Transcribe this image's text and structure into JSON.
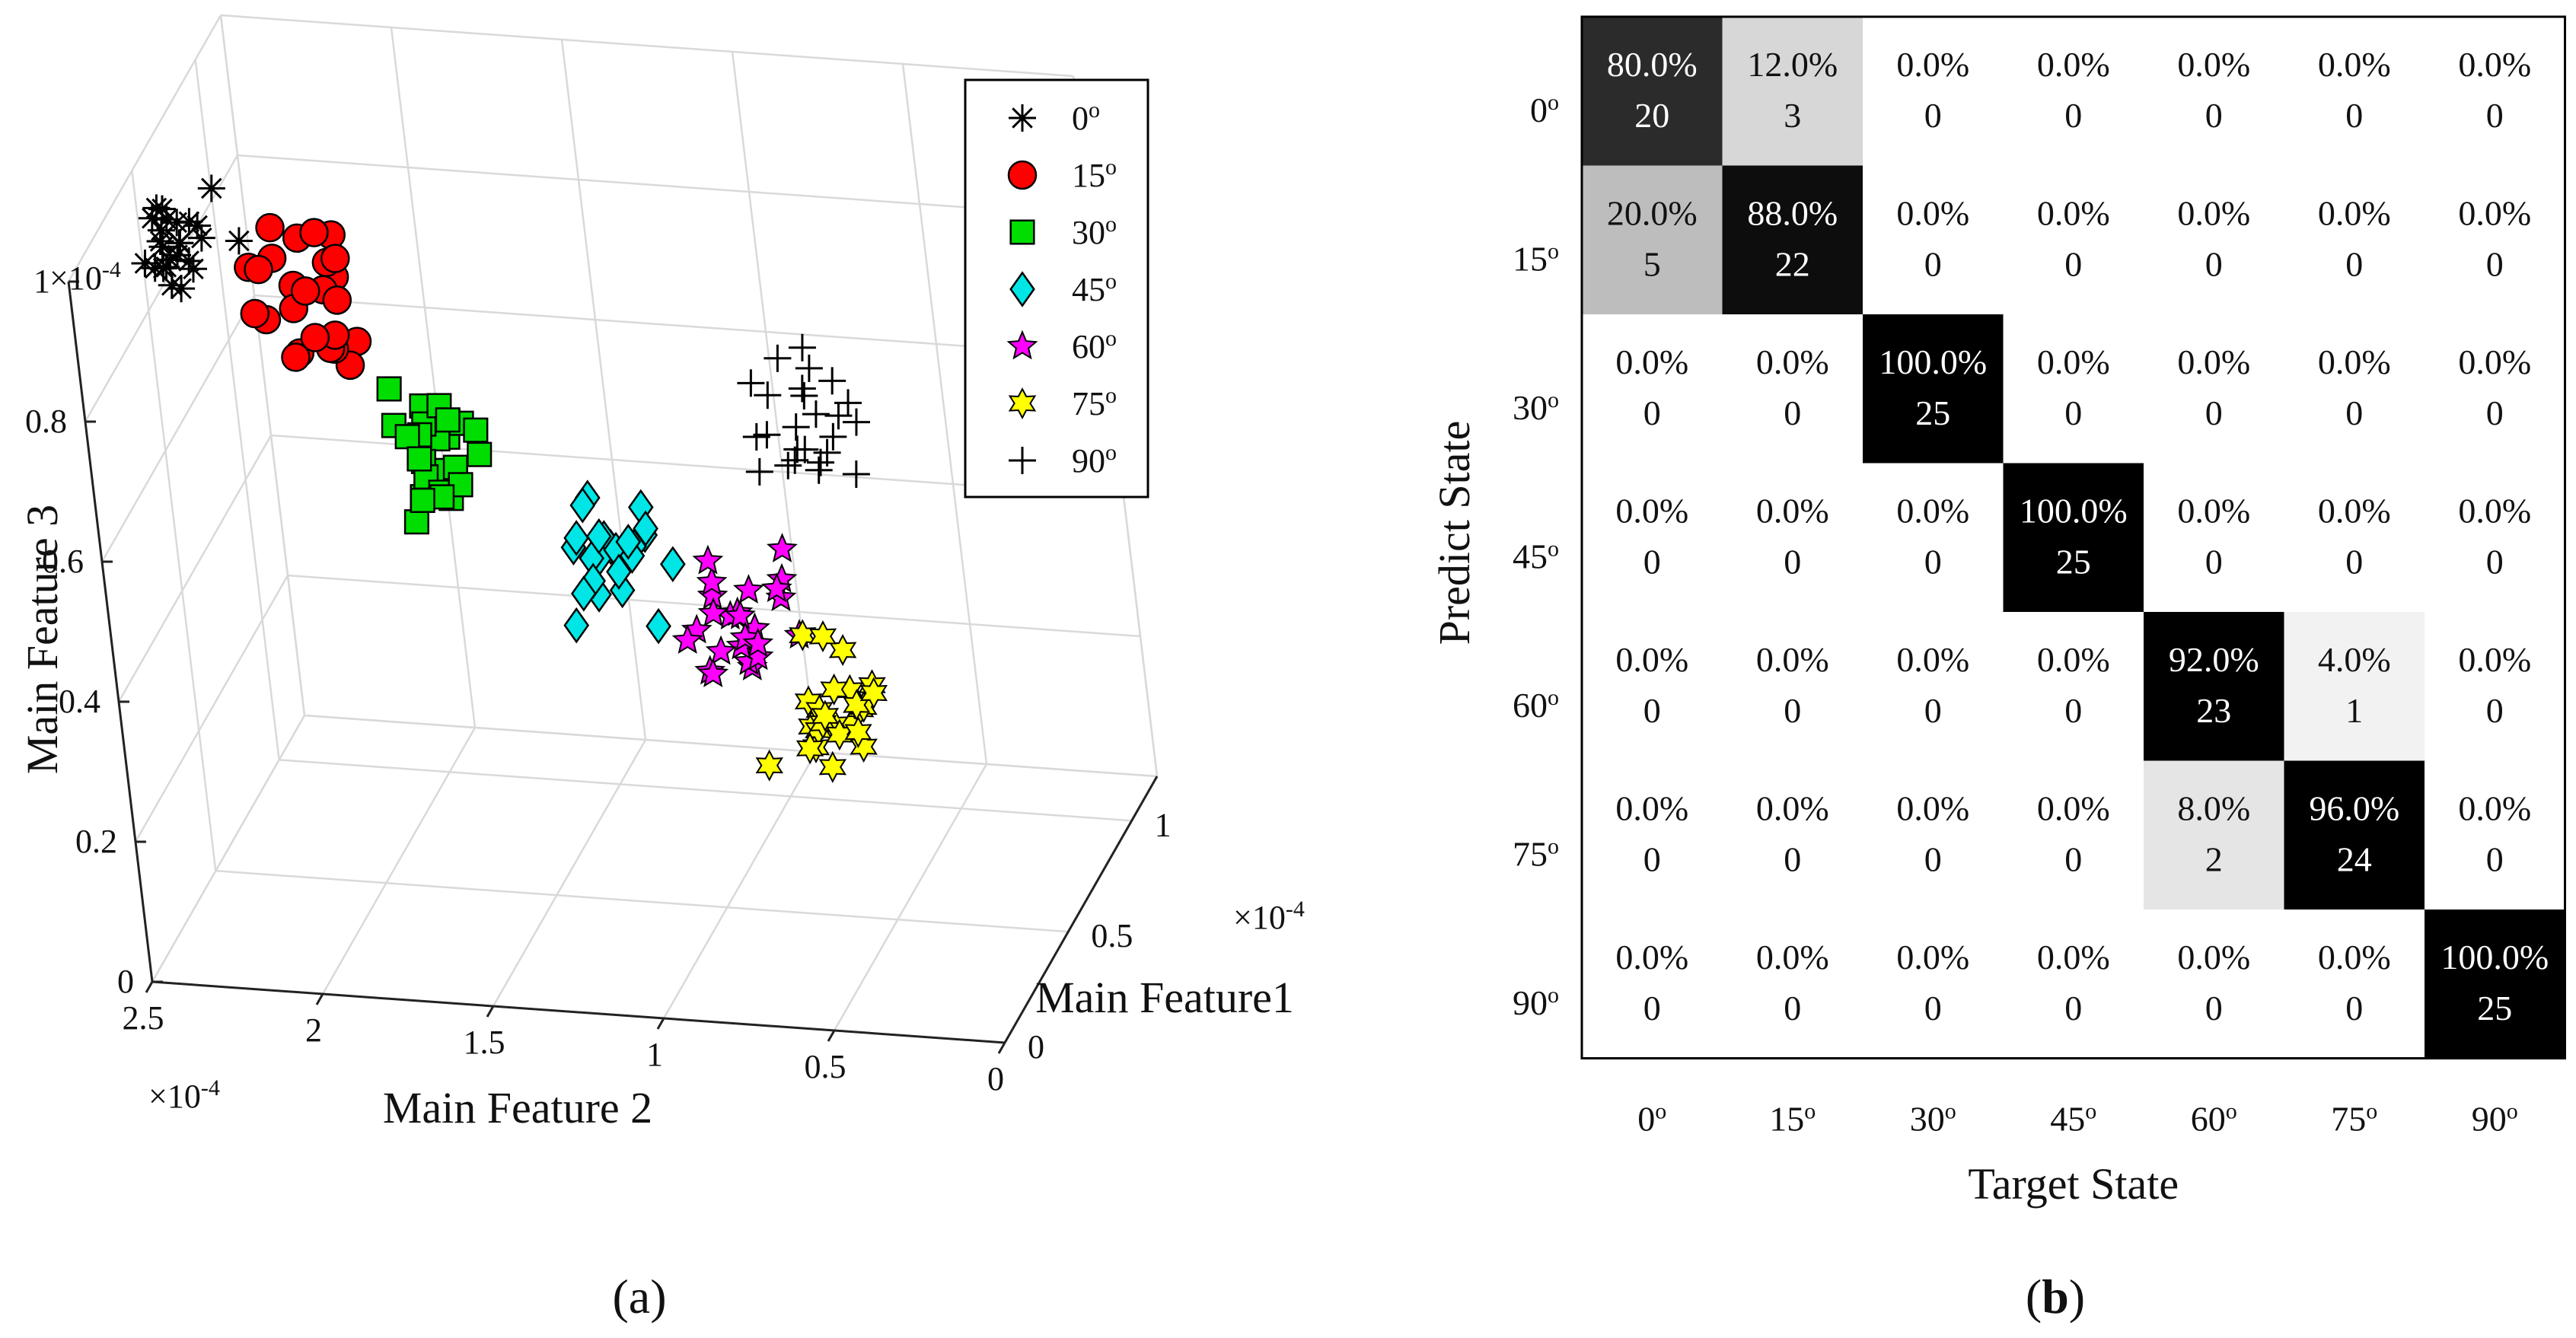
{
  "chart_data": [
    {
      "type": "scatter",
      "subtitle_open": "(",
      "subtitle_letter": "a",
      "subtitle_close": ")",
      "xlabel": "Main Feature1",
      "ylabel": "Main Feature 2",
      "zlabel": "Main Feature 3",
      "x_multiplier": "×10",
      "y_multiplier": "×10",
      "z_multiplier": "×10",
      "multiplier_exp": "-4",
      "xticks": [
        0,
        0.5,
        1
      ],
      "xtick_labels": [
        "0",
        "0.5",
        "1"
      ],
      "yticks": [
        0,
        0.5,
        1,
        1.5,
        2,
        2.5
      ],
      "ytick_labels": [
        "0",
        "0.5",
        "1",
        "1.5",
        "2",
        "2.5"
      ],
      "zticks": [
        0,
        0.2,
        0.4,
        0.6,
        0.8,
        1
      ],
      "ztick_labels": [
        "0",
        "0.2",
        "0.4",
        "0.6",
        "0.8",
        "1"
      ],
      "xlim": [
        0,
        1.2
      ],
      "ylim": [
        0,
        2.5
      ],
      "zlim": [
        0,
        1.0
      ],
      "legend_position": "top-right",
      "degree_symbol": "o",
      "series": [
        {
          "name": "0",
          "marker": "asterisk",
          "color": "#000000",
          "center": [
            0.3,
            2.3,
            0.96
          ],
          "spread": [
            0.09,
            0.15,
            0.07
          ],
          "count": 25
        },
        {
          "name": "15",
          "marker": "circle",
          "color": "#ff0000",
          "center": [
            0.3,
            1.95,
            0.9
          ],
          "spread": [
            0.09,
            0.14,
            0.09
          ],
          "count": 25
        },
        {
          "name": "30",
          "marker": "square",
          "color": "#00dd00",
          "center": [
            0.32,
            1.62,
            0.7
          ],
          "spread": [
            0.09,
            0.13,
            0.08
          ],
          "count": 25
        },
        {
          "name": "45",
          "marker": "diamond",
          "color": "#00e5e5",
          "center": [
            0.38,
            1.15,
            0.54
          ],
          "spread": [
            0.1,
            0.16,
            0.09
          ],
          "count": 25
        },
        {
          "name": "60",
          "marker": "star5",
          "color": "#ff00ff",
          "center": [
            0.45,
            0.82,
            0.43
          ],
          "spread": [
            0.1,
            0.14,
            0.08
          ],
          "count": 25
        },
        {
          "name": "75",
          "marker": "star6",
          "color": "#ffff00",
          "center": [
            0.45,
            0.58,
            0.32
          ],
          "spread": [
            0.1,
            0.14,
            0.09
          ],
          "count": 25
        },
        {
          "name": "90",
          "marker": "plus",
          "color": "#000000",
          "center": [
            0.88,
            0.78,
            0.58
          ],
          "spread": [
            0.14,
            0.16,
            0.1
          ],
          "count": 25
        }
      ]
    },
    {
      "type": "heatmap",
      "subtitle_open": "(",
      "subtitle_letter": "b",
      "subtitle_close": ")",
      "xlabel": "Target State",
      "ylabel": "Predict State",
      "degree_symbol": "o",
      "labels": [
        "0",
        "15",
        "30",
        "45",
        "60",
        "75",
        "90"
      ],
      "percents": [
        [
          "80.0%",
          "12.0%",
          "0.0%",
          "0.0%",
          "0.0%",
          "0.0%",
          "0.0%"
        ],
        [
          "20.0%",
          "88.0%",
          "0.0%",
          "0.0%",
          "0.0%",
          "0.0%",
          "0.0%"
        ],
        [
          "0.0%",
          "0.0%",
          "100.0%",
          "0.0%",
          "0.0%",
          "0.0%",
          "0.0%"
        ],
        [
          "0.0%",
          "0.0%",
          "0.0%",
          "100.0%",
          "0.0%",
          "0.0%",
          "0.0%"
        ],
        [
          "0.0%",
          "0.0%",
          "0.0%",
          "0.0%",
          "92.0%",
          "4.0%",
          "0.0%"
        ],
        [
          "0.0%",
          "0.0%",
          "0.0%",
          "0.0%",
          "8.0%",
          "96.0%",
          "0.0%"
        ],
        [
          "0.0%",
          "0.0%",
          "0.0%",
          "0.0%",
          "0.0%",
          "0.0%",
          "100.0%"
        ]
      ],
      "counts": [
        [
          "20",
          "3",
          "0",
          "0",
          "0",
          "0",
          "0"
        ],
        [
          "5",
          "22",
          "0",
          "0",
          "0",
          "0",
          "0"
        ],
        [
          "0",
          "0",
          "25",
          "0",
          "0",
          "0",
          "0"
        ],
        [
          "0",
          "0",
          "0",
          "25",
          "0",
          "0",
          "0"
        ],
        [
          "0",
          "0",
          "0",
          "0",
          "23",
          "1",
          "0"
        ],
        [
          "0",
          "0",
          "0",
          "0",
          "2",
          "24",
          "0"
        ],
        [
          "0",
          "0",
          "0",
          "0",
          "0",
          "0",
          "25"
        ]
      ],
      "values": [
        [
          80,
          12,
          0,
          0,
          0,
          0,
          0
        ],
        [
          20,
          88,
          0,
          0,
          0,
          0,
          0
        ],
        [
          0,
          0,
          100,
          0,
          0,
          0,
          0
        ],
        [
          0,
          0,
          0,
          100,
          0,
          0,
          0
        ],
        [
          0,
          0,
          0,
          0,
          92,
          4,
          0
        ],
        [
          0,
          0,
          0,
          0,
          8,
          96,
          0
        ],
        [
          0,
          0,
          0,
          0,
          0,
          0,
          100
        ]
      ]
    }
  ]
}
